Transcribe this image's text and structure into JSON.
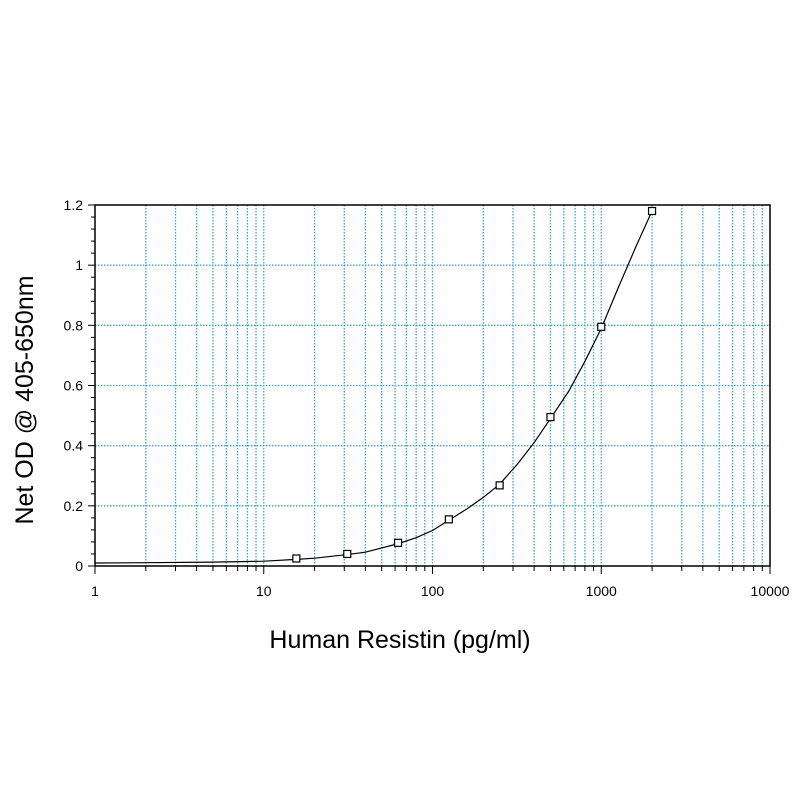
{
  "chart_data": {
    "type": "scatter",
    "title": "",
    "xlabel": "Human Resistin (pg/ml)",
    "ylabel": "Net OD @ 405-650nm",
    "x_scale": "log",
    "xlim": [
      1,
      10000
    ],
    "ylim": [
      0,
      1.2
    ],
    "x_ticks": [
      "1",
      "10",
      "100",
      "1000",
      "10000"
    ],
    "y_ticks": [
      "0",
      "0.2",
      "0.4",
      "0.6",
      "0.8",
      "1",
      "1.2"
    ],
    "grid": true,
    "legend": "none",
    "colors": {
      "grid": "#3aa8c8",
      "marker": "#000000",
      "curve": "#000000"
    },
    "series": [
      {
        "points": [
          {
            "x": 15.6,
            "y": 0.025
          },
          {
            "x": 31.25,
            "y": 0.04
          },
          {
            "x": 62.5,
            "y": 0.077
          },
          {
            "x": 125,
            "y": 0.155
          },
          {
            "x": 250,
            "y": 0.268
          },
          {
            "x": 500,
            "y": 0.495
          },
          {
            "x": 1000,
            "y": 0.795
          },
          {
            "x": 2000,
            "y": 1.18
          }
        ]
      }
    ],
    "fit_curve": {
      "x": [
        1,
        2,
        5,
        10,
        15.6,
        20,
        31.25,
        40,
        62.5,
        80,
        100,
        125,
        160,
        200,
        250,
        320,
        400,
        500,
        640,
        800,
        1000,
        1250,
        1600,
        2000
      ],
      "y": [
        0.01,
        0.011,
        0.013,
        0.016,
        0.022,
        0.026,
        0.038,
        0.046,
        0.074,
        0.094,
        0.118,
        0.152,
        0.19,
        0.228,
        0.272,
        0.34,
        0.41,
        0.49,
        0.58,
        0.68,
        0.79,
        0.92,
        1.06,
        1.18
      ]
    }
  }
}
